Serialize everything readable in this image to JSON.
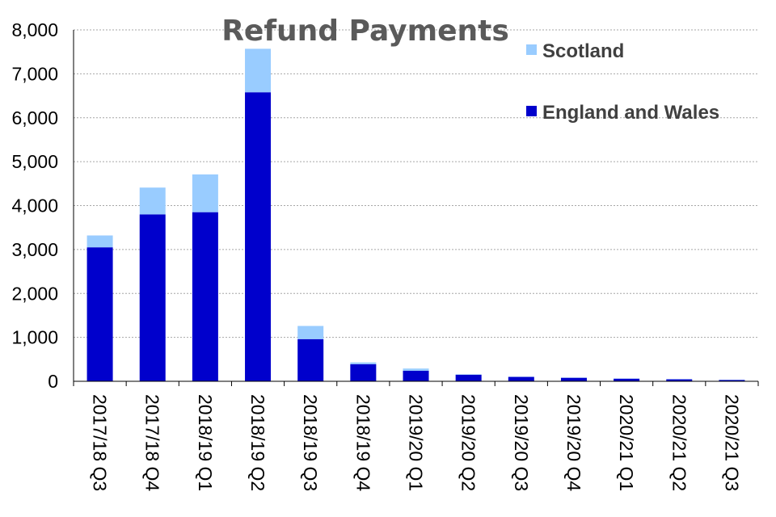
{
  "chart_data": {
    "type": "bar",
    "stacked": true,
    "title": "Refund Payments",
    "xlabel": "",
    "ylabel": "",
    "ylim": [
      0,
      8000
    ],
    "yticks": [
      0,
      1000,
      2000,
      3000,
      4000,
      5000,
      6000,
      7000,
      8000
    ],
    "ytick_labels": [
      "0",
      "1,000",
      "2,000",
      "3,000",
      "4,000",
      "5,000",
      "6,000",
      "7,000",
      "8,000"
    ],
    "grid": true,
    "legend_position": "top-right",
    "categories": [
      "2017/18 Q3",
      "2017/18 Q4",
      "2018/19 Q1",
      "2018/19 Q2",
      "2018/19 Q3",
      "2018/19 Q4",
      "2019/20 Q1",
      "2019/20 Q2",
      "2019/20 Q3",
      "2019/20 Q4",
      "2020/21 Q1",
      "2020/21 Q2",
      "2020/21 Q3"
    ],
    "series": [
      {
        "name": "England and Wales",
        "color": "#0000cc",
        "values": [
          3050,
          3800,
          3850,
          6580,
          960,
          390,
          240,
          150,
          100,
          80,
          60,
          45,
          30
        ]
      },
      {
        "name": "Scotland",
        "color": "#99ccff",
        "values": [
          270,
          610,
          860,
          990,
          300,
          40,
          50,
          10,
          5,
          5,
          5,
          5,
          5
        ]
      }
    ]
  }
}
